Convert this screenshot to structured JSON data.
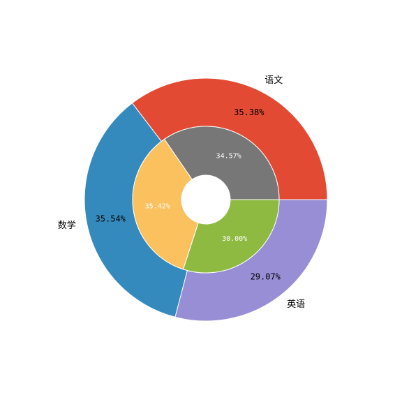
{
  "chart_data": {
    "type": "pie",
    "title": "",
    "rings": [
      {
        "name": "",
        "ring": "outer",
        "slices": [
          {
            "label": "语文",
            "value": 35.38,
            "pct_label": "35.38%",
            "color": "#E24A33"
          },
          {
            "label": "数学",
            "value": 35.54,
            "pct_label": "35.54%",
            "color": "#348ABD"
          },
          {
            "label": "英语",
            "value": 29.07,
            "pct_label": "29.07%",
            "color": "#988ED5"
          }
        ]
      },
      {
        "name": "",
        "ring": "inner",
        "slices": [
          {
            "label": "",
            "value": 34.57,
            "pct_label": "34.57%",
            "color": "#777777"
          },
          {
            "label": "",
            "value": 35.42,
            "pct_label": "35.42%",
            "color": "#FBC15E"
          },
          {
            "label": "",
            "value": 30.0,
            "pct_label": "30.00%",
            "color": "#8EBA42"
          }
        ]
      }
    ]
  }
}
